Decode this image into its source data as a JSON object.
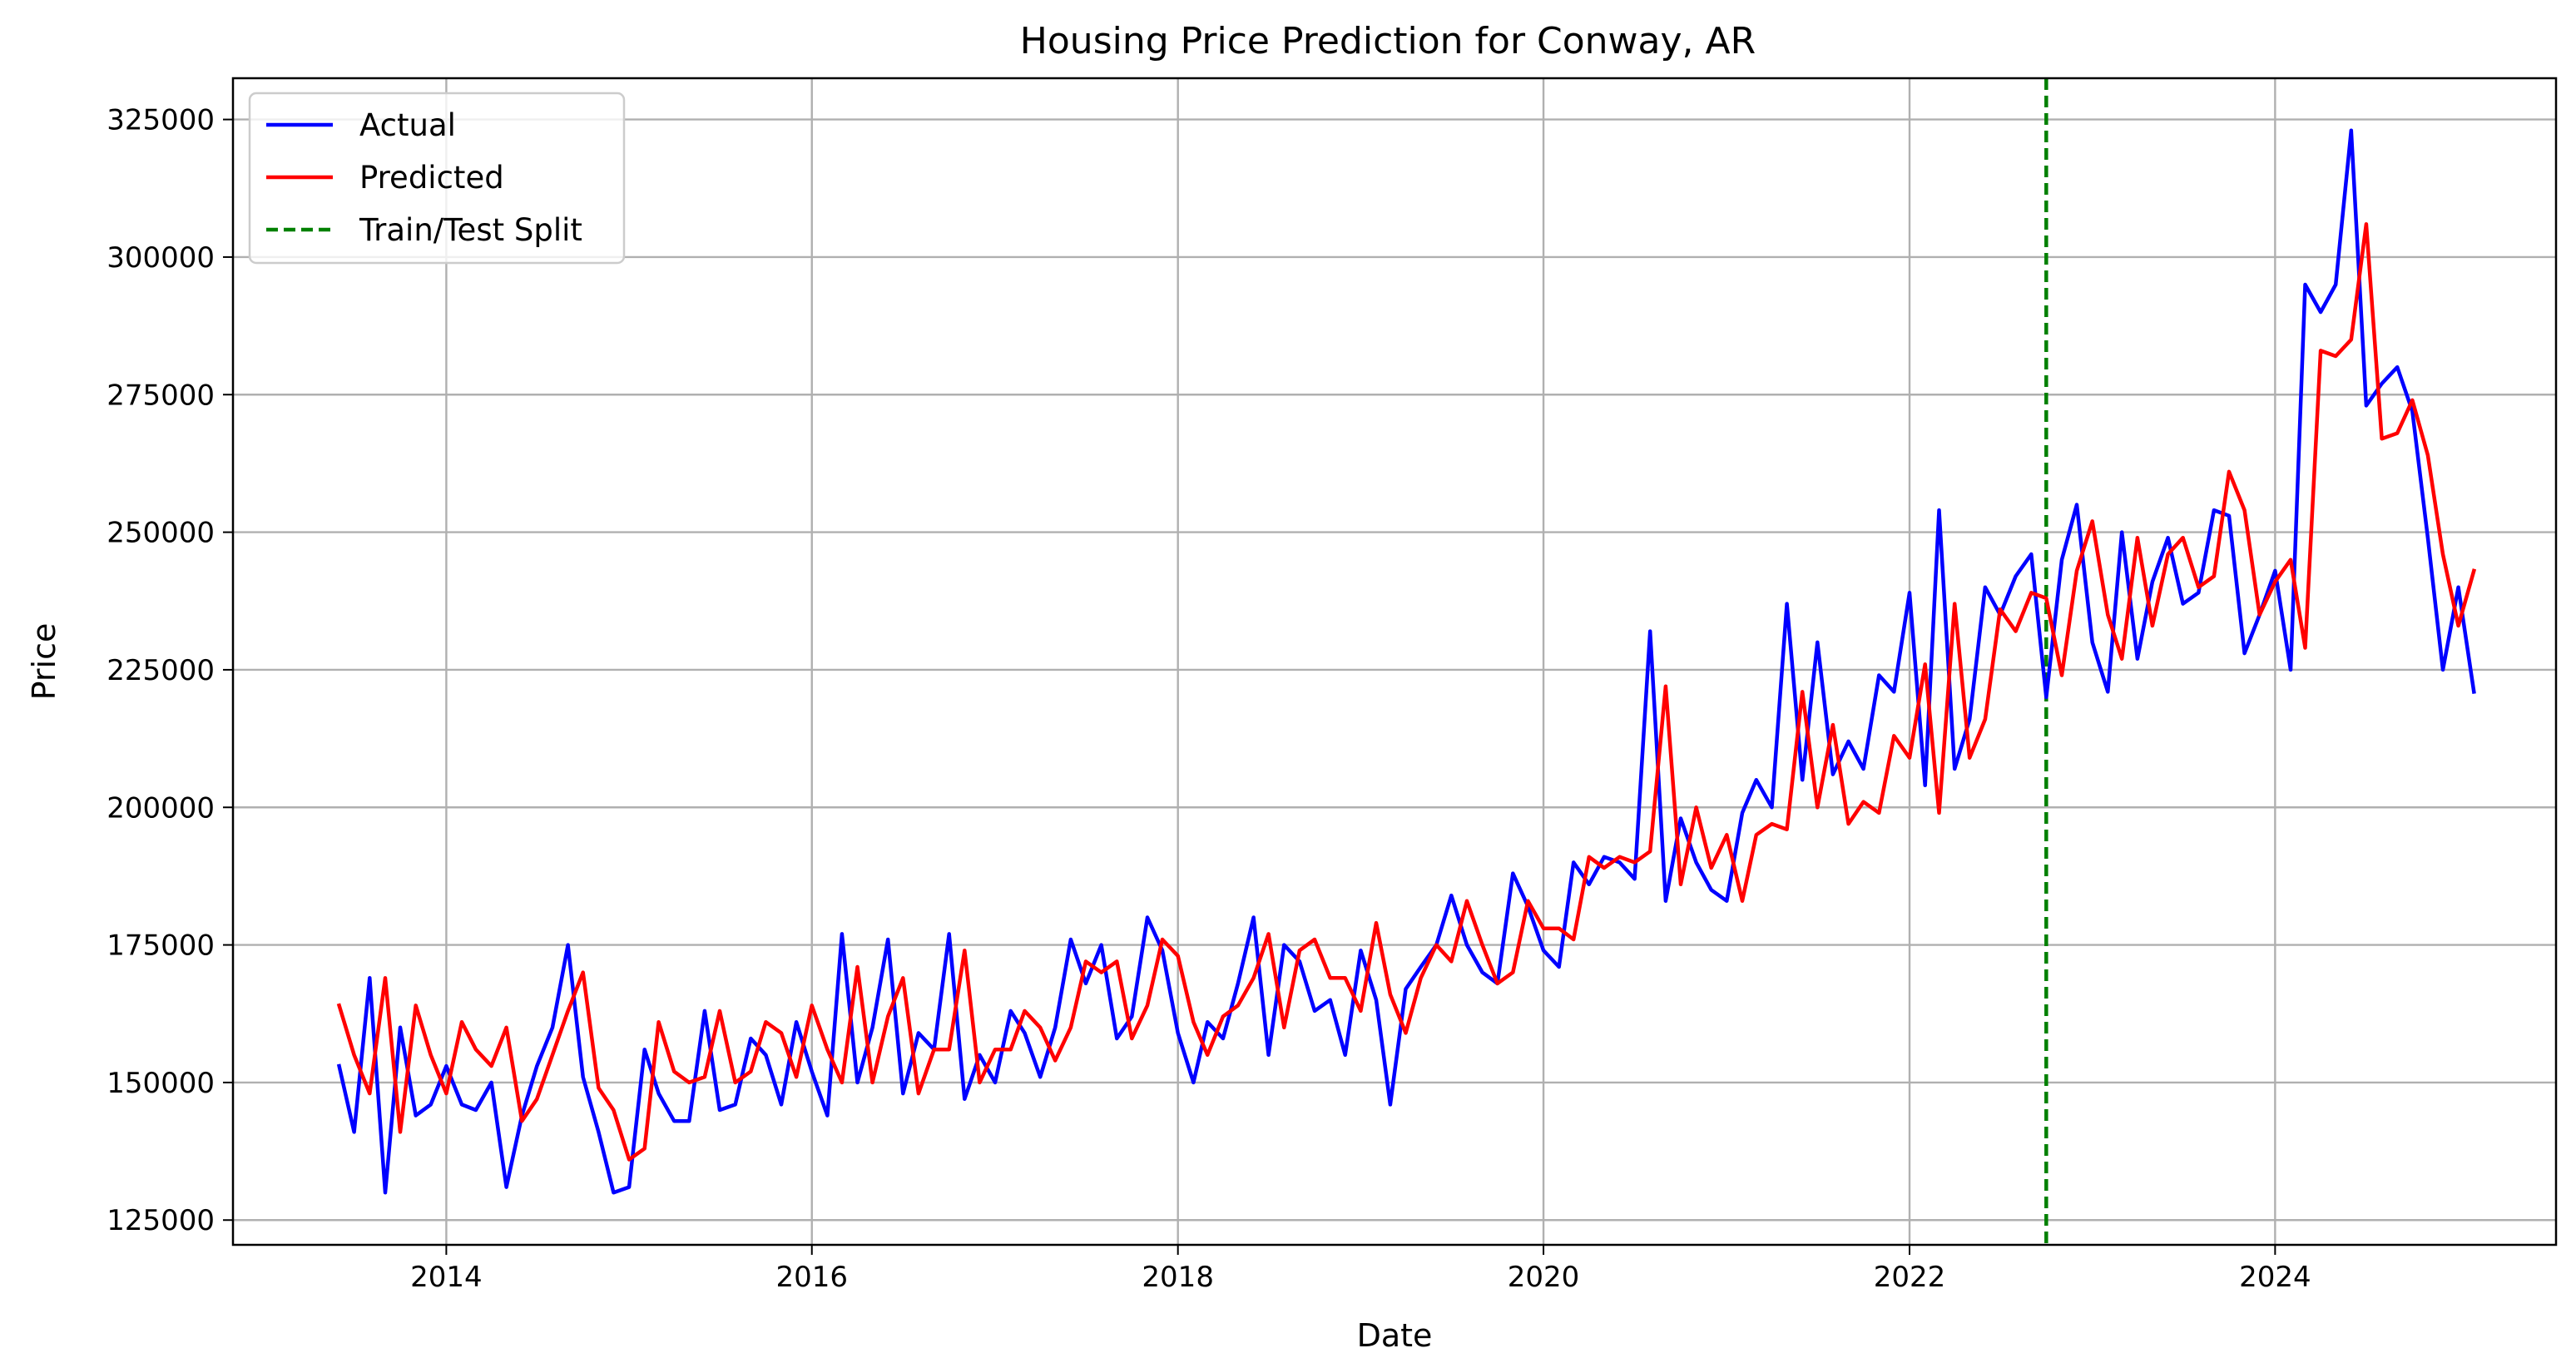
{
  "chart_data": {
    "type": "line",
    "title": "Housing Price Prediction for Conway, AR",
    "xlabel": "Date",
    "ylabel": "Price",
    "xlim": [
      "2012-11-01",
      "2025-07-15"
    ],
    "ylim": [
      120500,
      332500
    ],
    "x_ticks": [
      "2014",
      "2016",
      "2018",
      "2020",
      "2022",
      "2024"
    ],
    "y_ticks": [
      125000,
      150000,
      175000,
      200000,
      225000,
      250000,
      275000,
      300000,
      325000
    ],
    "grid": true,
    "legend_position": "top-left",
    "colors": {
      "actual": "#0000ff",
      "predicted": "#ff0000",
      "split": "#008000"
    },
    "split": {
      "name": "Train/Test Split",
      "x": "2022-10-01"
    },
    "series": [
      {
        "name": "Actual",
        "x": [
          "2013-06",
          "2013-07",
          "2013-08",
          "2013-09",
          "2013-10",
          "2013-11",
          "2013-12",
          "2014-01",
          "2014-02",
          "2014-03",
          "2014-04",
          "2014-05",
          "2014-06",
          "2014-07",
          "2014-08",
          "2014-09",
          "2014-10",
          "2014-11",
          "2014-12",
          "2015-01",
          "2015-02",
          "2015-03",
          "2015-04",
          "2015-05",
          "2015-06",
          "2015-07",
          "2015-08",
          "2015-09",
          "2015-10",
          "2015-11",
          "2015-12",
          "2016-01",
          "2016-02",
          "2016-03",
          "2016-04",
          "2016-05",
          "2016-06",
          "2016-07",
          "2016-08",
          "2016-09",
          "2016-10",
          "2016-11",
          "2016-12",
          "2017-01",
          "2017-02",
          "2017-03",
          "2017-04",
          "2017-05",
          "2017-06",
          "2017-07",
          "2017-08",
          "2017-09",
          "2017-10",
          "2017-11",
          "2017-12",
          "2018-01",
          "2018-02",
          "2018-03",
          "2018-04",
          "2018-05",
          "2018-06",
          "2018-07",
          "2018-08",
          "2018-09",
          "2018-10",
          "2018-11",
          "2018-12",
          "2019-01",
          "2019-02",
          "2019-03",
          "2019-04",
          "2019-05",
          "2019-06",
          "2019-07",
          "2019-08",
          "2019-09",
          "2019-10",
          "2019-11",
          "2019-12",
          "2020-01",
          "2020-02",
          "2020-03",
          "2020-04",
          "2020-05",
          "2020-06",
          "2020-07",
          "2020-08",
          "2020-09",
          "2020-10",
          "2020-11",
          "2020-12",
          "2021-01",
          "2021-02",
          "2021-03",
          "2021-04",
          "2021-05",
          "2021-06",
          "2021-07",
          "2021-08",
          "2021-09",
          "2021-10",
          "2021-11",
          "2021-12",
          "2022-01",
          "2022-02",
          "2022-03",
          "2022-04",
          "2022-05",
          "2022-06",
          "2022-07",
          "2022-08",
          "2022-09",
          "2022-10",
          "2022-11",
          "2022-12",
          "2023-01",
          "2023-02",
          "2023-03",
          "2023-04",
          "2023-05",
          "2023-06",
          "2023-07",
          "2023-08",
          "2023-09",
          "2023-10",
          "2023-11",
          "2023-12",
          "2024-01",
          "2024-02",
          "2024-03",
          "2024-04",
          "2024-05",
          "2024-06",
          "2024-07",
          "2024-08",
          "2024-09",
          "2024-10",
          "2024-11",
          "2024-12",
          "2025-01",
          "2025-02"
        ],
        "values": [
          153000,
          141000,
          169000,
          130000,
          160000,
          144000,
          146000,
          153000,
          146000,
          145000,
          150000,
          131000,
          144000,
          153000,
          160000,
          175000,
          151000,
          141000,
          130000,
          131000,
          156000,
          148000,
          143000,
          143000,
          163000,
          145000,
          146000,
          158000,
          155000,
          146000,
          161000,
          152000,
          144000,
          177000,
          150000,
          160000,
          176000,
          148000,
          159000,
          156000,
          177000,
          147000,
          155000,
          150000,
          163000,
          159000,
          151000,
          160000,
          176000,
          168000,
          175000,
          158000,
          162000,
          180000,
          174000,
          159000,
          150000,
          161000,
          158000,
          168000,
          180000,
          155000,
          175000,
          172000,
          163000,
          165000,
          155000,
          174000,
          165000,
          146000,
          167000,
          171000,
          175000,
          184000,
          175000,
          170000,
          168000,
          188000,
          182000,
          174000,
          171000,
          190000,
          186000,
          191000,
          190000,
          187000,
          232000,
          183000,
          198000,
          190000,
          185000,
          183000,
          199000,
          205000,
          200000,
          237000,
          205000,
          230000,
          206000,
          212000,
          207000,
          224000,
          221000,
          239000,
          204000,
          254000,
          207000,
          216000,
          240000,
          235000,
          242000,
          246000,
          220000,
          245000,
          255000,
          230000,
          221000,
          250000,
          227000,
          241000,
          249000,
          237000,
          239000,
          254000,
          253000,
          228000,
          235000,
          243000,
          225000,
          295000,
          290000,
          295000,
          323000,
          273000,
          277000,
          280000,
          272000,
          249000,
          225000,
          240000,
          221000
        ]
      },
      {
        "name": "Predicted",
        "x": [
          "2013-06",
          "2013-07",
          "2013-08",
          "2013-09",
          "2013-10",
          "2013-11",
          "2013-12",
          "2014-01",
          "2014-02",
          "2014-03",
          "2014-04",
          "2014-05",
          "2014-06",
          "2014-07",
          "2014-08",
          "2014-09",
          "2014-10",
          "2014-11",
          "2014-12",
          "2015-01",
          "2015-02",
          "2015-03",
          "2015-04",
          "2015-05",
          "2015-06",
          "2015-07",
          "2015-08",
          "2015-09",
          "2015-10",
          "2015-11",
          "2015-12",
          "2016-01",
          "2016-02",
          "2016-03",
          "2016-04",
          "2016-05",
          "2016-06",
          "2016-07",
          "2016-08",
          "2016-09",
          "2016-10",
          "2016-11",
          "2016-12",
          "2017-01",
          "2017-02",
          "2017-03",
          "2017-04",
          "2017-05",
          "2017-06",
          "2017-07",
          "2017-08",
          "2017-09",
          "2017-10",
          "2017-11",
          "2017-12",
          "2018-01",
          "2018-02",
          "2018-03",
          "2018-04",
          "2018-05",
          "2018-06",
          "2018-07",
          "2018-08",
          "2018-09",
          "2018-10",
          "2018-11",
          "2018-12",
          "2019-01",
          "2019-02",
          "2019-03",
          "2019-04",
          "2019-05",
          "2019-06",
          "2019-07",
          "2019-08",
          "2019-09",
          "2019-10",
          "2019-11",
          "2019-12",
          "2020-01",
          "2020-02",
          "2020-03",
          "2020-04",
          "2020-05",
          "2020-06",
          "2020-07",
          "2020-08",
          "2020-09",
          "2020-10",
          "2020-11",
          "2020-12",
          "2021-01",
          "2021-02",
          "2021-03",
          "2021-04",
          "2021-05",
          "2021-06",
          "2021-07",
          "2021-08",
          "2021-09",
          "2021-10",
          "2021-11",
          "2021-12",
          "2022-01",
          "2022-02",
          "2022-03",
          "2022-04",
          "2022-05",
          "2022-06",
          "2022-07",
          "2022-08",
          "2022-09",
          "2022-10",
          "2022-11",
          "2022-12",
          "2023-01",
          "2023-02",
          "2023-03",
          "2023-04",
          "2023-05",
          "2023-06",
          "2023-07",
          "2023-08",
          "2023-09",
          "2023-10",
          "2023-11",
          "2023-12",
          "2024-01",
          "2024-02",
          "2024-03",
          "2024-04",
          "2024-05",
          "2024-06",
          "2024-07",
          "2024-08",
          "2024-09",
          "2024-10",
          "2024-11",
          "2024-12",
          "2025-01",
          "2025-02"
        ],
        "values": [
          164000,
          155000,
          148000,
          169000,
          141000,
          164000,
          155000,
          148000,
          161000,
          156000,
          153000,
          160000,
          143000,
          147000,
          155000,
          163000,
          170000,
          149000,
          145000,
          136000,
          138000,
          161000,
          152000,
          150000,
          151000,
          163000,
          150000,
          152000,
          161000,
          159000,
          151000,
          164000,
          156000,
          150000,
          171000,
          150000,
          162000,
          169000,
          148000,
          156000,
          156000,
          174000,
          150000,
          156000,
          156000,
          163000,
          160000,
          154000,
          160000,
          172000,
          170000,
          172000,
          158000,
          164000,
          176000,
          173000,
          161000,
          155000,
          162000,
          164000,
          169000,
          177000,
          160000,
          174000,
          176000,
          169000,
          169000,
          163000,
          179000,
          166000,
          159000,
          169000,
          175000,
          172000,
          183000,
          175000,
          168000,
          170000,
          183000,
          178000,
          178000,
          176000,
          191000,
          189000,
          191000,
          190000,
          192000,
          222000,
          186000,
          200000,
          189000,
          195000,
          183000,
          195000,
          197000,
          196000,
          221000,
          200000,
          215000,
          197000,
          201000,
          199000,
          213000,
          209000,
          226000,
          199000,
          237000,
          209000,
          216000,
          236000,
          232000,
          239000,
          238000,
          224000,
          243000,
          252000,
          235000,
          227000,
          249000,
          233000,
          246000,
          249000,
          240000,
          242000,
          261000,
          254000,
          235000,
          241000,
          245000,
          229000,
          283000,
          282000,
          285000,
          306000,
          267000,
          268000,
          274000,
          264000,
          246000,
          233000,
          243000
        ]
      }
    ]
  },
  "legend": {
    "items": [
      {
        "label": "Actual"
      },
      {
        "label": "Predicted"
      },
      {
        "label": "Train/Test Split"
      }
    ]
  }
}
